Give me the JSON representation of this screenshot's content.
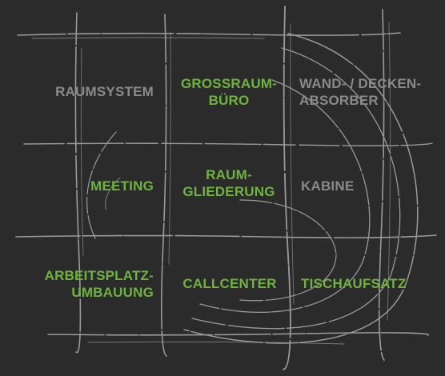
{
  "colors": {
    "background": "#2b2b2b",
    "active": "#6fb33f",
    "inactive": "#8a8a8a",
    "sketch": "#9a9a9a"
  },
  "grid": {
    "row1": {
      "col1": {
        "lines": [
          "RAUMSYSTEM"
        ],
        "state": "inactive"
      },
      "col2": {
        "lines": [
          "GROSSRAUM-",
          "BÜRO"
        ],
        "state": "active"
      },
      "col3": {
        "lines": [
          "WAND- / DECKEN-",
          "ABSORBER"
        ],
        "state": "inactive"
      }
    },
    "row2": {
      "col1": {
        "lines": [
          "MEETING"
        ],
        "state": "active"
      },
      "col2": {
        "lines": [
          "RAUM-",
          "GLIEDERUNG"
        ],
        "state": "active"
      },
      "col3": {
        "lines": [
          "KABINE"
        ],
        "state": "inactive"
      }
    },
    "row3": {
      "col1": {
        "lines": [
          "ARBEITSPLATZ-",
          "UMBAUUNG"
        ],
        "state": "active"
      },
      "col2": {
        "lines": [
          "CALLCENTER"
        ],
        "state": "active"
      },
      "col3": {
        "lines": [
          "TISCHAUFSATZ"
        ],
        "state": "active"
      }
    }
  }
}
